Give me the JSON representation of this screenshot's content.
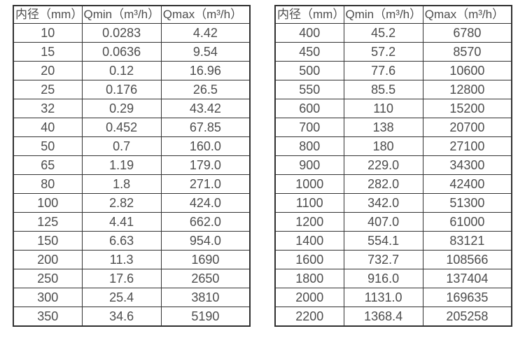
{
  "colors": {
    "background": "#ffffff",
    "border": "#333333",
    "text": "#4d4d4d"
  },
  "chart_data": [
    {
      "type": "table",
      "columns": [
        "内径（mm）",
        "Qmin（m³/h）",
        "Qmax（m³/h）"
      ],
      "rows": [
        [
          "10",
          "0.0283",
          "4.42"
        ],
        [
          "15",
          "0.0636",
          "9.54"
        ],
        [
          "20",
          "0.12",
          "16.96"
        ],
        [
          "25",
          "0.176",
          "26.5"
        ],
        [
          "32",
          "0.29",
          "43.42"
        ],
        [
          "40",
          "0.452",
          "67.85"
        ],
        [
          "50",
          "0.7",
          "160.0"
        ],
        [
          "65",
          "1.19",
          "179.0"
        ],
        [
          "80",
          "1.8",
          "271.0"
        ],
        [
          "100",
          "2.82",
          "424.0"
        ],
        [
          "125",
          "4.41",
          "662.0"
        ],
        [
          "150",
          "6.63",
          "954.0"
        ],
        [
          "200",
          "11.3",
          "1690"
        ],
        [
          "250",
          "17.6",
          "2650"
        ],
        [
          "300",
          "25.4",
          "3810"
        ],
        [
          "350",
          "34.6",
          "5190"
        ]
      ]
    },
    {
      "type": "table",
      "columns": [
        "内径（mm）",
        "Qmin（m³/h）",
        "Qmax（m³/h）"
      ],
      "rows": [
        [
          "400",
          "45.2",
          "6780"
        ],
        [
          "450",
          "57.2",
          "8570"
        ],
        [
          "500",
          "77.6",
          "10600"
        ],
        [
          "550",
          "85.5",
          "12800"
        ],
        [
          "600",
          "110",
          "15200"
        ],
        [
          "700",
          "138",
          "20700"
        ],
        [
          "800",
          "180",
          "27100"
        ],
        [
          "900",
          "229.0",
          "34300"
        ],
        [
          "1000",
          "282.0",
          "42400"
        ],
        [
          "1100",
          "342.0",
          "51300"
        ],
        [
          "1200",
          "407.0",
          "61000"
        ],
        [
          "1400",
          "554.1",
          "83121"
        ],
        [
          "1600",
          "732.7",
          "108566"
        ],
        [
          "1800",
          "916.0",
          "137404"
        ],
        [
          "2000",
          "1131.0",
          "169635"
        ],
        [
          "2200",
          "1368.4",
          "205258"
        ]
      ]
    }
  ]
}
